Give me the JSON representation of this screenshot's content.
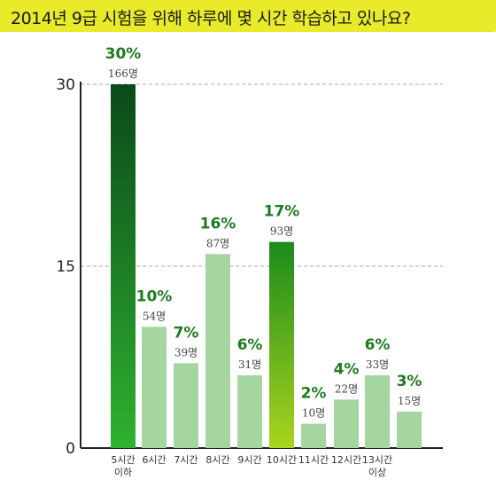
{
  "chart_data": {
    "type": "bar",
    "title": "2014년 9급 시험을 위해 하루에 몇 시간 학습하고 있나요?",
    "categories": [
      "5시간\n이하",
      "6시간",
      "7시간",
      "8시간",
      "9시간",
      "10시간",
      "11시간",
      "12시간",
      "13시간\n이상"
    ],
    "values": [
      30,
      10,
      7,
      16,
      6,
      17,
      2,
      4,
      6
    ],
    "percent_labels": [
      "30%",
      "10%",
      "7%",
      "16%",
      "6%",
      "17%",
      "2%",
      "4%",
      "6%"
    ],
    "count_labels": [
      "166명",
      "54명",
      "39명",
      "87명",
      "31명",
      "93명",
      "10명",
      "22명",
      "33명"
    ],
    "ylim": [
      0,
      30
    ],
    "yticks": [
      0,
      15,
      30
    ],
    "grid": true,
    "colors": {
      "highlight_top": "#0a4a1a",
      "highlight_bottom": "#2fb12f",
      "highlight_alt_top": "#1c8a1c",
      "highlight_alt_bottom": "#a9d41e",
      "normal": "#a6d6a0",
      "label": "#1f7a1f",
      "title_band": "#e8ea2a"
    },
    "highlighted": [
      0,
      5
    ]
  },
  "extra_bar": {
    "percent_label": "3%",
    "count_label": "15명",
    "value": 3
  }
}
